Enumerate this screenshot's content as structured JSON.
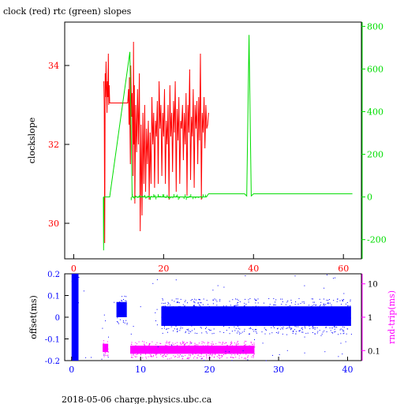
{
  "title": "clock (red) rtc (green) slopes",
  "footer": "2018-05-06 charge.physics.ubc.ca",
  "colors": {
    "red": "#ff0000",
    "green": "#00dd00",
    "blue": "#0000ff",
    "magenta": "#ff00ff"
  },
  "chart_data": [
    {
      "type": "line",
      "title": "clock (red) rtc (green) slopes",
      "xlim": [
        -2,
        64
      ],
      "x_ticks": [
        "0",
        "20",
        "40",
        "60"
      ],
      "left_axis": {
        "label": "clockslope",
        "lim": [
          29.1,
          35.1
        ],
        "ticks": [
          "30",
          "32",
          "34"
        ]
      },
      "right_axis": {
        "lim": [
          -290,
          820
        ],
        "ticks": [
          "-200",
          "0",
          "200",
          "400",
          "600",
          "800"
        ]
      },
      "series": [
        {
          "color": "red",
          "axis": "left",
          "x": [
            6.7,
            6.8,
            6.9,
            7.0,
            7.1,
            7.2,
            7.3,
            7.4,
            7.5,
            7.6,
            7.7,
            7.8,
            7.9,
            8.0,
            12.0,
            12.2,
            12.3,
            12.4,
            12.6,
            12.7,
            12.9,
            13.0,
            13.2,
            13.3,
            13.4,
            13.5,
            13.6,
            13.8,
            14.0,
            14.2,
            14.4,
            14.6,
            14.8,
            15.0,
            15.2,
            15.4,
            15.6,
            15.8,
            16.0,
            16.2,
            16.4,
            16.6,
            16.8,
            17.0,
            17.2,
            17.4,
            17.6,
            17.8,
            18.0,
            18.2,
            18.4,
            18.6,
            18.8,
            19.0,
            19.2,
            19.4,
            19.6,
            19.8,
            20.0,
            20.2,
            20.4,
            20.6,
            20.8,
            21.0,
            21.2,
            21.4,
            21.6,
            21.8,
            22.0,
            22.2,
            22.4,
            22.6,
            22.8,
            23.0,
            23.2,
            23.4,
            23.6,
            23.8,
            24.0,
            24.2,
            24.4,
            24.6,
            24.8,
            25.0,
            25.2,
            25.4,
            25.6,
            25.8,
            26.0,
            26.2,
            26.4,
            26.6,
            26.8,
            27.0,
            27.2,
            27.4,
            27.6,
            27.8,
            28.0,
            28.2,
            28.4,
            28.6,
            28.8,
            29.0,
            29.2,
            29.4,
            29.6,
            29.8,
            30.0
          ],
          "y": [
            33.6,
            33.0,
            29.5,
            33.8,
            33.2,
            34.1,
            33.4,
            32.8,
            33.6,
            33.2,
            34.3,
            33.0,
            33.5,
            33.05,
            33.05,
            33.4,
            32.5,
            33.7,
            31.5,
            34.0,
            32.7,
            33.3,
            31.2,
            34.6,
            32.0,
            33.5,
            30.5,
            33.0,
            31.8,
            33.4,
            32.0,
            33.8,
            29.8,
            32.5,
            30.2,
            32.8,
            31.0,
            33.0,
            30.8,
            32.4,
            31.5,
            32.6,
            30.6,
            32.3,
            31.0,
            33.2,
            32.0,
            32.8,
            30.9,
            32.6,
            32.2,
            33.1,
            31.0,
            33.6,
            32.4,
            33.0,
            31.2,
            32.8,
            32.2,
            33.4,
            31.0,
            32.6,
            32.0,
            33.0,
            30.6,
            33.5,
            32.2,
            32.8,
            31.3,
            33.1,
            32.3,
            33.6,
            30.8,
            32.9,
            32.1,
            33.2,
            31.0,
            32.6,
            32.4,
            33.0,
            31.6,
            32.8,
            32.0,
            33.3,
            30.7,
            33.0,
            32.3,
            33.9,
            31.1,
            32.7,
            32.2,
            33.4,
            30.9,
            33.0,
            32.4,
            33.1,
            31.5,
            33.2,
            32.1,
            34.3,
            30.6,
            32.8,
            32.3,
            33.2,
            31.9,
            33.0,
            32.4,
            32.5,
            32.8
          ]
        },
        {
          "color": "green",
          "axis": "right",
          "x": [
            6.6,
            6.65,
            6.7,
            6.75,
            8.0,
            12.5,
            13.0,
            13.5,
            14.0,
            16.0,
            18.0,
            20.0,
            22.0,
            24.0,
            26.0,
            28.0,
            29.5,
            30.0,
            38.0,
            38.5,
            39.0,
            39.5,
            40.0,
            62.0
          ],
          "y": [
            0,
            -250,
            0,
            0,
            0,
            680,
            0,
            0,
            0,
            0,
            0,
            0,
            0,
            0,
            0,
            0,
            0,
            15,
            15,
            5,
            760,
            5,
            15,
            15
          ]
        }
      ]
    },
    {
      "type": "scatter",
      "xlim": [
        -1,
        42
      ],
      "x_ticks": [
        "0",
        "10",
        "20",
        "30",
        "40"
      ],
      "left_axis": {
        "label": "offset(ms)",
        "lim": [
          -0.2,
          0.2
        ],
        "ticks": [
          "-0.2",
          "-0.1",
          "0",
          "0.1",
          "0.2"
        ]
      },
      "right_axis": {
        "label": "rnd-trip(ms)",
        "scale": "log",
        "lim": [
          0.05,
          20
        ],
        "ticks": [
          "0.1",
          "1",
          "10"
        ]
      },
      "series": [
        {
          "color": "blue",
          "axis": "left",
          "bands": [
            {
              "x": [
                0,
                1
              ],
              "y": [
                -0.2,
                0.2
              ]
            },
            {
              "x": [
                6.5,
                8.0
              ],
              "y": [
                0.0,
                0.07
              ]
            },
            {
              "x": [
                13.0,
                40.5
              ],
              "y": [
                -0.04,
                0.05
              ]
            }
          ]
        },
        {
          "color": "magenta",
          "axis": "right",
          "bands": [
            {
              "x": [
                4.5,
                5.3
              ],
              "y": [
                0.09,
                0.16
              ]
            },
            {
              "x": [
                8.5,
                26.5
              ],
              "y": [
                0.08,
                0.14
              ]
            }
          ]
        }
      ]
    }
  ]
}
